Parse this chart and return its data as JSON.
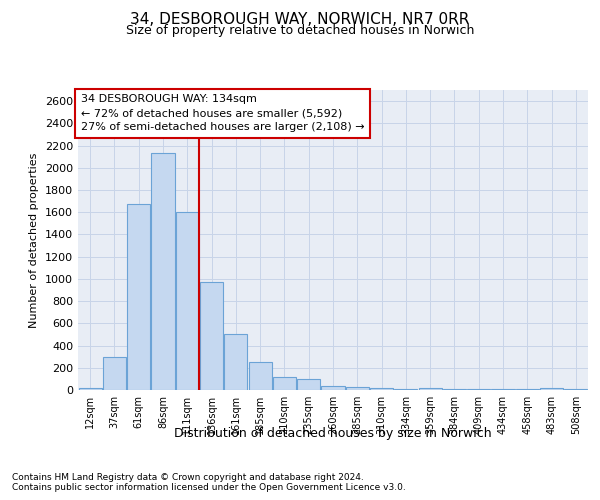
{
  "title": "34, DESBOROUGH WAY, NORWICH, NR7 0RR",
  "subtitle": "Size of property relative to detached houses in Norwich",
  "xlabel": "Distribution of detached houses by size in Norwich",
  "ylabel": "Number of detached properties",
  "categories": [
    "12sqm",
    "37sqm",
    "61sqm",
    "86sqm",
    "111sqm",
    "136sqm",
    "161sqm",
    "185sqm",
    "210sqm",
    "235sqm",
    "260sqm",
    "285sqm",
    "310sqm",
    "334sqm",
    "359sqm",
    "384sqm",
    "409sqm",
    "434sqm",
    "458sqm",
    "483sqm",
    "508sqm"
  ],
  "values": [
    20,
    300,
    1670,
    2130,
    1600,
    970,
    500,
    255,
    120,
    100,
    40,
    30,
    15,
    10,
    15,
    8,
    8,
    12,
    5,
    20,
    5
  ],
  "bar_color": "#c5d8f0",
  "bar_edge_color": "#6ba3d6",
  "vline_color": "#cc0000",
  "annotation_line1": "34 DESBOROUGH WAY: 134sqm",
  "annotation_line2": "← 72% of detached houses are smaller (5,592)",
  "annotation_line3": "27% of semi-detached houses are larger (2,108) →",
  "annotation_box_edgecolor": "#cc0000",
  "annotation_box_facecolor": "white",
  "ylim": [
    0,
    2700
  ],
  "yticks": [
    0,
    200,
    400,
    600,
    800,
    1000,
    1200,
    1400,
    1600,
    1800,
    2000,
    2200,
    2400,
    2600
  ],
  "grid_color": "#c8d4e8",
  "bg_color": "#e8edf5",
  "footnote1": "Contains HM Land Registry data © Crown copyright and database right 2024.",
  "footnote2": "Contains public sector information licensed under the Open Government Licence v3.0."
}
